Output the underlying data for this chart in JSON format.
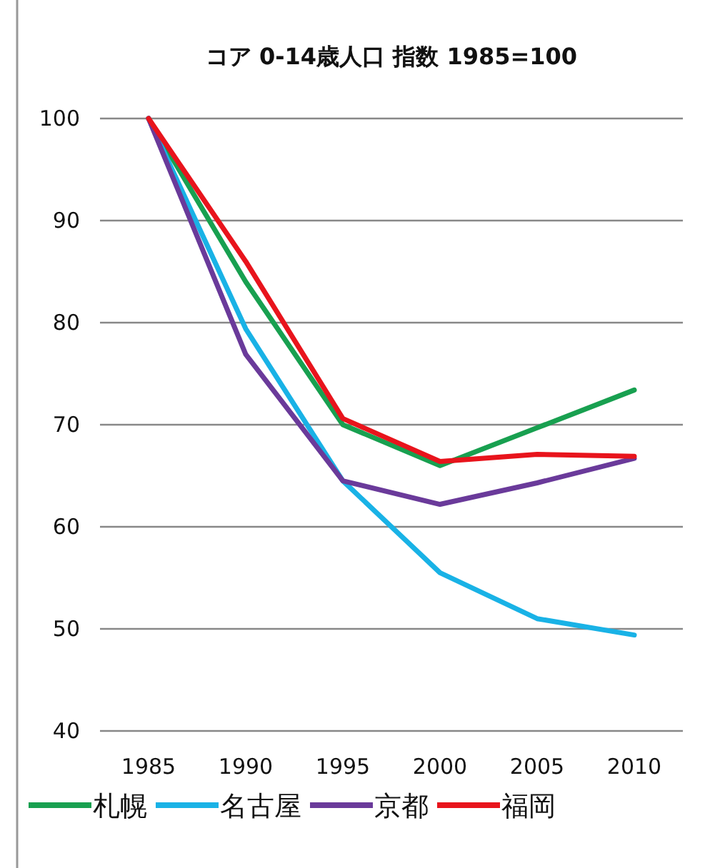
{
  "chart_data": {
    "type": "line",
    "title": "コア 0-14歳人口 指数 1985=100",
    "categories": [
      "1985",
      "1990",
      "1995",
      "2000",
      "2005",
      "2010"
    ],
    "series": [
      {
        "name": "札幌",
        "color": "#18a050",
        "values": [
          100,
          84,
          70,
          66,
          69.7,
          73.4
        ]
      },
      {
        "name": "名古屋",
        "color": "#19b2e6",
        "values": [
          100,
          79.4,
          64.5,
          55.5,
          51,
          49.4
        ]
      },
      {
        "name": "京都",
        "color": "#6a3a9a",
        "values": [
          100,
          76.9,
          64.5,
          62.2,
          64.3,
          66.7
        ]
      },
      {
        "name": "福岡",
        "color": "#e8141c",
        "values": [
          100,
          86,
          70.6,
          66.4,
          67.1,
          66.9
        ]
      }
    ],
    "ylim": [
      40,
      100
    ],
    "yticks": [
      40,
      50,
      60,
      70,
      80,
      90,
      100
    ],
    "grid": "y",
    "legend": "bottom",
    "marker": "none",
    "line_style": "solid"
  }
}
